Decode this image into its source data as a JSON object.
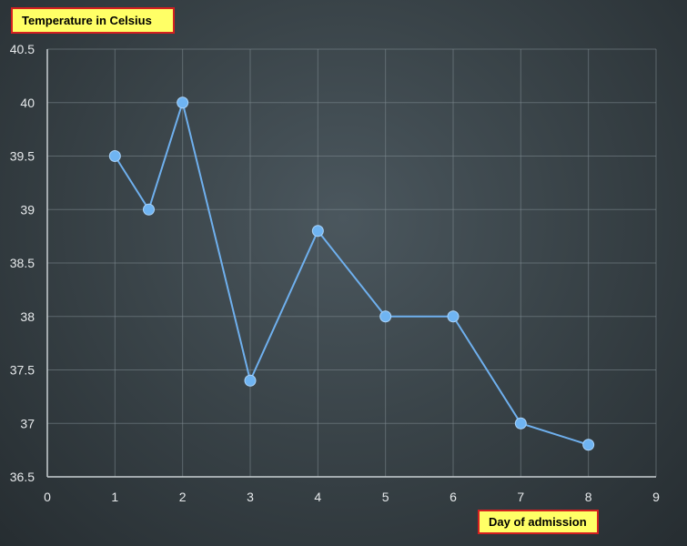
{
  "chart_data": {
    "type": "line",
    "title": "",
    "xlabel": "Day of admission",
    "ylabel": "Temperature in Celsius",
    "xlim": [
      0,
      9
    ],
    "ylim": [
      36.5,
      40.5
    ],
    "x_ticks": [
      0,
      1,
      2,
      3,
      4,
      5,
      6,
      7,
      8,
      9
    ],
    "y_ticks": [
      36.5,
      37,
      37.5,
      38,
      38.5,
      39,
      39.5,
      40,
      40.5
    ],
    "y_tick_labels": [
      "36.5",
      "37",
      "37.5",
      "38",
      "38.5",
      "39",
      "39.5",
      "40",
      "40.5"
    ],
    "grid": true,
    "series": [
      {
        "x": [
          1,
          1.5,
          2,
          3,
          4,
          5,
          6,
          7,
          8
        ],
        "y": [
          39.5,
          39,
          40,
          37.4,
          38.8,
          38,
          38,
          37,
          36.8
        ]
      }
    ],
    "colors": {
      "line": "#6fb0ee",
      "marker": "#6fb4f2",
      "label_box_fill": "#ffff66",
      "label_box_border": "#d42020"
    }
  }
}
